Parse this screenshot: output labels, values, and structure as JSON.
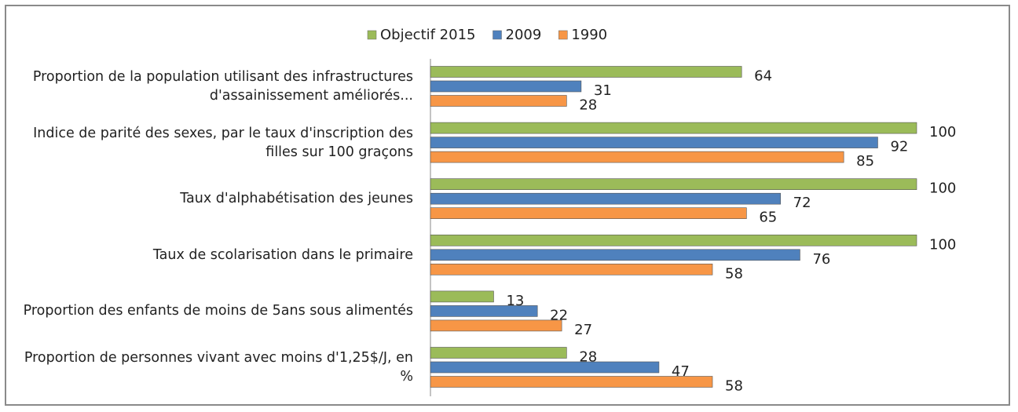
{
  "chart_data": {
    "type": "hbar",
    "categories": [
      "Proportion de la population utilisant des infrastructures d'assainissement améliorés...",
      "Indice de parité des sexes, par le taux d'inscription des filles sur 100 graçons",
      "Taux d'alphabétisation des jeunes",
      "Taux de scolarisation dans le primaire",
      "Proportion des enfants de moins de 5ans sous alimentés",
      "Proportion de personnes vivant avec moins d'1,25$/J, en %"
    ],
    "series": [
      {
        "name": "Objectif 2015",
        "color": "#9bbb59",
        "values": [
          64,
          100,
          100,
          100,
          13,
          28
        ]
      },
      {
        "name": "2009",
        "color": "#4f81bd",
        "values": [
          31,
          92,
          72,
          76,
          22,
          47
        ]
      },
      {
        "name": "1990",
        "color": "#f79646",
        "values": [
          28,
          85,
          65,
          58,
          27,
          58
        ]
      }
    ],
    "xlim": [
      0,
      100
    ],
    "legend": "top"
  }
}
